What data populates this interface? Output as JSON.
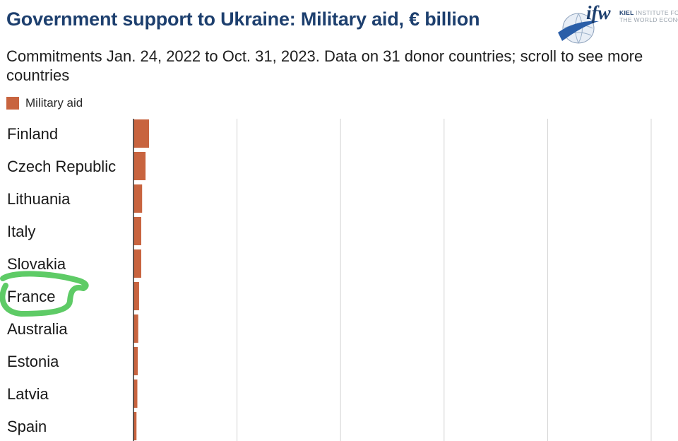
{
  "title": "Government support to Ukraine: Military aid, € billion",
  "subtitle": "Commitments Jan. 24, 2022 to Oct. 31, 2023. Data on 31 donor countries; scroll to see more countries",
  "logo": {
    "mark": "ifw",
    "line1_bold": "KIEL",
    "line1_rest": "INSTITUTE FOR",
    "line2": "THE WORLD ECONOMY"
  },
  "colors": {
    "bar": "#c8643f",
    "title": "#1d3f6e",
    "grid": "#d4d4d4",
    "annotation": "#5ecb66"
  },
  "chart_data": {
    "type": "bar",
    "orientation": "horizontal",
    "legend": [
      "Military aid"
    ],
    "categories": [
      "Finland",
      "Czech Republic",
      "Lithuania",
      "Italy",
      "Slovakia",
      "France",
      "Australia",
      "Estonia",
      "Latvia",
      "Spain"
    ],
    "series": [
      {
        "name": "Military aid",
        "values": [
          1.8,
          1.4,
          1.0,
          0.9,
          0.9,
          0.65,
          0.55,
          0.5,
          0.45,
          0.35
        ]
      }
    ],
    "xlim": [
      0,
      60
    ],
    "x_gridlines": [
      0,
      12,
      24,
      36,
      48,
      60
    ],
    "annotation": {
      "type": "hand-drawn circle",
      "target": "France"
    }
  }
}
